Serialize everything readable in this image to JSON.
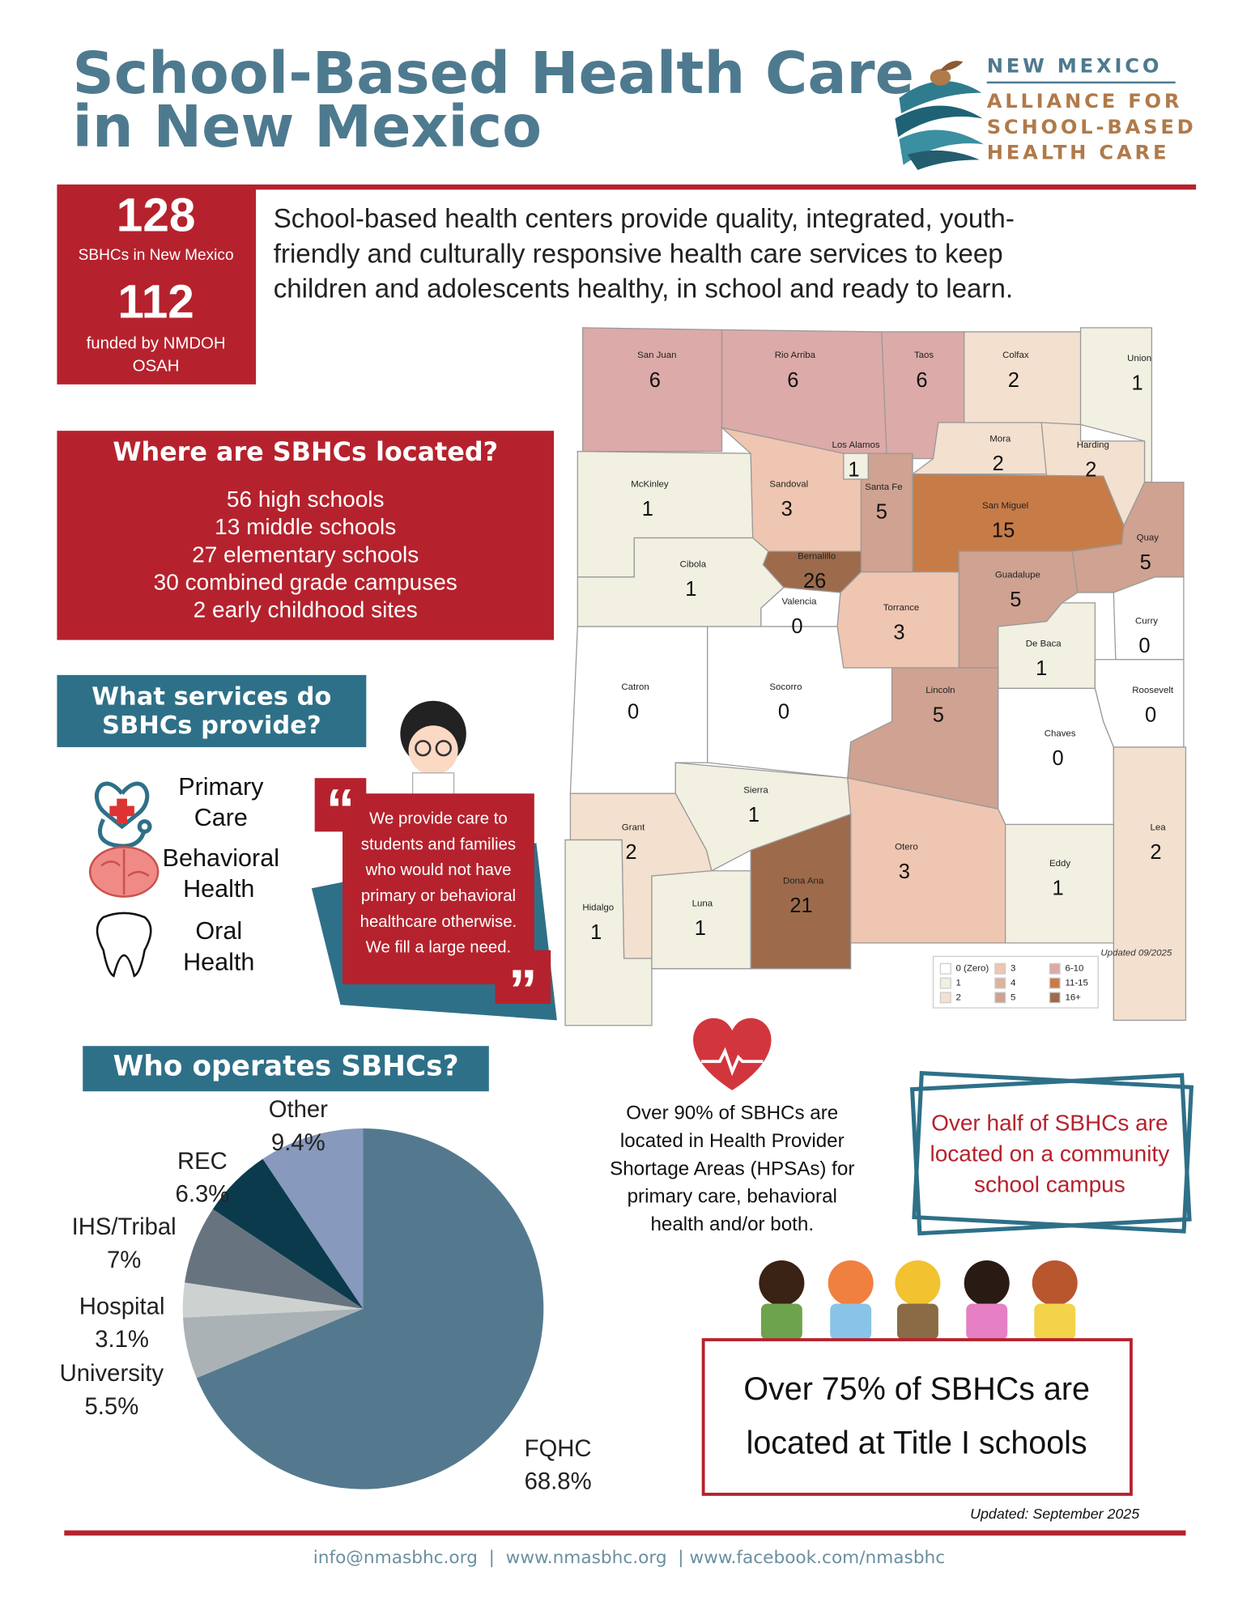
{
  "header": {
    "title_lines": [
      "School-Based Health Care",
      "in New Mexico"
    ],
    "logo_lines": [
      "NEW MEXICO",
      "ALLIANCE FOR",
      "SCHOOL-BASED",
      "HEALTH CARE"
    ]
  },
  "stats": [
    {
      "value": 128,
      "label_lines": [
        "SBHCs in New Mexico"
      ]
    },
    {
      "value": 112,
      "label_lines": [
        "funded by NMDOH",
        "OSAH"
      ]
    }
  ],
  "intro_lines": [
    "School-based health centers provide quality, integrated, youth-",
    "friendly and culturally responsive health care services to keep",
    "children and adolescents healthy, in school and ready to learn."
  ],
  "locations": {
    "title": "Where are SBHCs located?",
    "items": [
      "56 high schools",
      "13 middle schools",
      "27 elementary schools",
      "30 combined grade campuses",
      "2 early childhood sites"
    ]
  },
  "services": {
    "title_lines": [
      "What services do",
      "SBHCs provide?"
    ],
    "items": [
      {
        "lines": [
          "Primary",
          "Care"
        ]
      },
      {
        "lines": [
          "Behavioral",
          "Health"
        ]
      },
      {
        "lines": [
          "Oral",
          "Health"
        ]
      }
    ]
  },
  "quote_lines": [
    "We provide care to",
    "students and families",
    "who would not have",
    "primary or behavioral",
    "healthcare otherwise.",
    "We fill a large need."
  ],
  "map": {
    "note": "Updated 09/2025",
    "counties": [
      {
        "name": "San Juan",
        "count": 6,
        "color": "#dcaaa8"
      },
      {
        "name": "Rio Arriba",
        "count": 6,
        "color": "#dcaaa8"
      },
      {
        "name": "Taos",
        "count": 6,
        "color": "#dcaaa8"
      },
      {
        "name": "Colfax",
        "count": 2,
        "color": "#f3e0cf"
      },
      {
        "name": "Union",
        "count": 1,
        "color": "#f1f0e1"
      },
      {
        "name": "Los Alamos",
        "count": 1,
        "color": "#f1f0e1"
      },
      {
        "name": "Mora",
        "count": 2,
        "color": "#f3e0cf"
      },
      {
        "name": "Harding",
        "count": 2,
        "color": "#f3e0cf"
      },
      {
        "name": "McKinley",
        "count": 1,
        "color": "#f1f0e1"
      },
      {
        "name": "Sandoval",
        "count": 3,
        "color": "#efc6b1"
      },
      {
        "name": "Santa Fe",
        "count": 5,
        "color": "#cfa291"
      },
      {
        "name": "San Miguel",
        "count": 15,
        "color": "#c77c48"
      },
      {
        "name": "Quay",
        "count": 5,
        "color": "#cfa291"
      },
      {
        "name": "Bernalillo",
        "count": 26,
        "color": "#9d6b4b"
      },
      {
        "name": "Cibola",
        "count": 1,
        "color": "#f1f0e1"
      },
      {
        "name": "Valencia",
        "count": 0,
        "color": "#ffffff"
      },
      {
        "name": "Torrance",
        "count": 3,
        "color": "#efc6b1"
      },
      {
        "name": "Guadalupe",
        "count": 5,
        "color": "#cfa291"
      },
      {
        "name": "Curry",
        "count": 0,
        "color": "#ffffff"
      },
      {
        "name": "De Baca",
        "count": 1,
        "color": "#f1f0e1"
      },
      {
        "name": "Roosevelt",
        "count": 0,
        "color": "#ffffff"
      },
      {
        "name": "Catron",
        "count": 0,
        "color": "#ffffff"
      },
      {
        "name": "Socorro",
        "count": 0,
        "color": "#ffffff"
      },
      {
        "name": "Lincoln",
        "count": 5,
        "color": "#cfa291"
      },
      {
        "name": "Chaves",
        "count": 0,
        "color": "#ffffff"
      },
      {
        "name": "Sierra",
        "count": 1,
        "color": "#f1f0e1"
      },
      {
        "name": "Grant",
        "count": 2,
        "color": "#f3e0cf"
      },
      {
        "name": "Otero",
        "count": 3,
        "color": "#efc6b1"
      },
      {
        "name": "Lea",
        "count": 2,
        "color": "#f3e0cf"
      },
      {
        "name": "Eddy",
        "count": 1,
        "color": "#f1f0e1"
      },
      {
        "name": "Dona Ana",
        "count": 21,
        "color": "#9d6b4b"
      },
      {
        "name": "Hidalgo",
        "count": 1,
        "color": "#f1f0e1"
      },
      {
        "name": "Luna",
        "count": 1,
        "color": "#f1f0e1"
      }
    ],
    "legend": [
      {
        "label": "0 (Zero)",
        "color": "#ffffff"
      },
      {
        "label": "1",
        "color": "#f1f0e1"
      },
      {
        "label": "2",
        "color": "#f3e0cf"
      },
      {
        "label": "3",
        "color": "#efc6b1"
      },
      {
        "label": "4",
        "color": "#ddb29f"
      },
      {
        "label": "5",
        "color": "#cfa291"
      },
      {
        "label": "6-10",
        "color": "#dcaaa8"
      },
      {
        "label": "11-15",
        "color": "#c77c48"
      },
      {
        "label": "16+",
        "color": "#9d6b4b"
      }
    ]
  },
  "operators_title": "Who operates SBHCs?",
  "chart_data": {
    "type": "pie",
    "categories": [
      "FQHC",
      "University",
      "Hospital",
      "IHS/Tribal",
      "REC",
      "Other"
    ],
    "values": [
      68.8,
      5.5,
      3.1,
      7,
      6.3,
      9.4
    ],
    "value_labels": [
      "68.8%",
      "5.5%",
      "3.1%",
      "7%",
      "6.3%",
      "9.4%"
    ],
    "colors": [
      "#54798e",
      "#aab2b6",
      "#cdd2d0",
      "#67747f",
      "#0b3a4d",
      "#8799bc"
    ]
  },
  "hpsa_lines": [
    "Over 90% of SBHCs are",
    "located in Health Provider",
    "Shortage Areas (HPSAs) for",
    "primary care, behavioral",
    "health and/or both."
  ],
  "community_lines": [
    "Over half of SBHCs are",
    "located on a community",
    "school campus"
  ],
  "title1_lines": [
    "Over 75% of SBHCs are",
    "located at Title I schools"
  ],
  "updated": "Updated: September 2025",
  "footer": "info@nmasbhc.org  |  www.nmasbhc.org  | www.facebook.com/nmasbhc"
}
